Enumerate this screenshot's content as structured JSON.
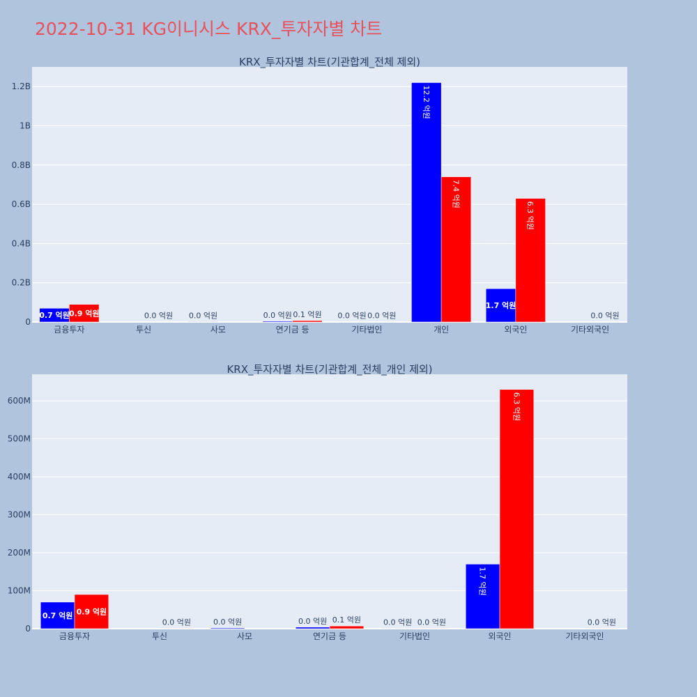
{
  "page": {
    "title": "2022-10-31 KG이니시스 KRX_투자자별 차트",
    "background": "#b0c4de",
    "title_color": "#e8505b"
  },
  "chart_data": [
    {
      "type": "bar",
      "title": "KRX_투자자별 차트(기관합계_전체 제외)",
      "categories": [
        "금융투자",
        "투신",
        "사모",
        "연기금 등",
        "기타법인",
        "개인",
        "외국인",
        "기타외국인"
      ],
      "series": [
        {
          "color": "#0000ff",
          "values": [
            70000000,
            0,
            2000000,
            4000000,
            1000000,
            1220000000,
            170000000,
            0
          ],
          "labels": [
            "0.7 억원",
            "",
            "0.0 억원",
            "0.0 억원",
            "0.0 억원",
            "12.2 억원",
            "1.7 억원",
            ""
          ]
        },
        {
          "color": "#ff0000",
          "values": [
            90000000,
            1000000,
            0,
            7000000,
            1000000,
            740000000,
            630000000,
            1000000
          ],
          "labels": [
            "0.9 억원",
            "0.0 억원",
            "",
            "0.1 억원",
            "0.0 억원",
            "7.4 억원",
            "6.3 억원",
            "0.0 억원"
          ]
        }
      ],
      "ylim": [
        0,
        1300000000
      ],
      "yticks": [
        0,
        200000000,
        400000000,
        600000000,
        800000000,
        1000000000,
        1200000000
      ],
      "ytick_labels": [
        "0",
        "0.2B",
        "0.4B",
        "0.6B",
        "0.8B",
        "1B",
        "1.2B"
      ],
      "grid": true,
      "legend": "none"
    },
    {
      "type": "bar",
      "title": "KRX_투자자별 차트(기관합계_전체_개인 제외)",
      "categories": [
        "금융투자",
        "투신",
        "사모",
        "연기금 등",
        "기타법인",
        "외국인",
        "기타외국인"
      ],
      "series": [
        {
          "color": "#0000ff",
          "values": [
            70000000,
            0,
            2000000,
            4000000,
            1000000,
            170000000,
            0
          ],
          "labels": [
            "0.7 억원",
            "",
            "0.0 억원",
            "0.0 억원",
            "0.0 억원",
            "1.7 억원",
            ""
          ]
        },
        {
          "color": "#ff0000",
          "values": [
            90000000,
            1000000,
            0,
            7000000,
            1000000,
            630000000,
            1000000
          ],
          "labels": [
            "0.9 억원",
            "0.0 억원",
            "",
            "0.1 억원",
            "0.0 억원",
            "6.3 억원",
            "0.0 억원"
          ]
        }
      ],
      "ylim": [
        0,
        670000000
      ],
      "yticks": [
        0,
        100000000,
        200000000,
        300000000,
        400000000,
        500000000,
        600000000
      ],
      "ytick_labels": [
        "0",
        "100M",
        "200M",
        "300M",
        "400M",
        "500M",
        "600M"
      ],
      "grid": true,
      "legend": "none"
    }
  ]
}
